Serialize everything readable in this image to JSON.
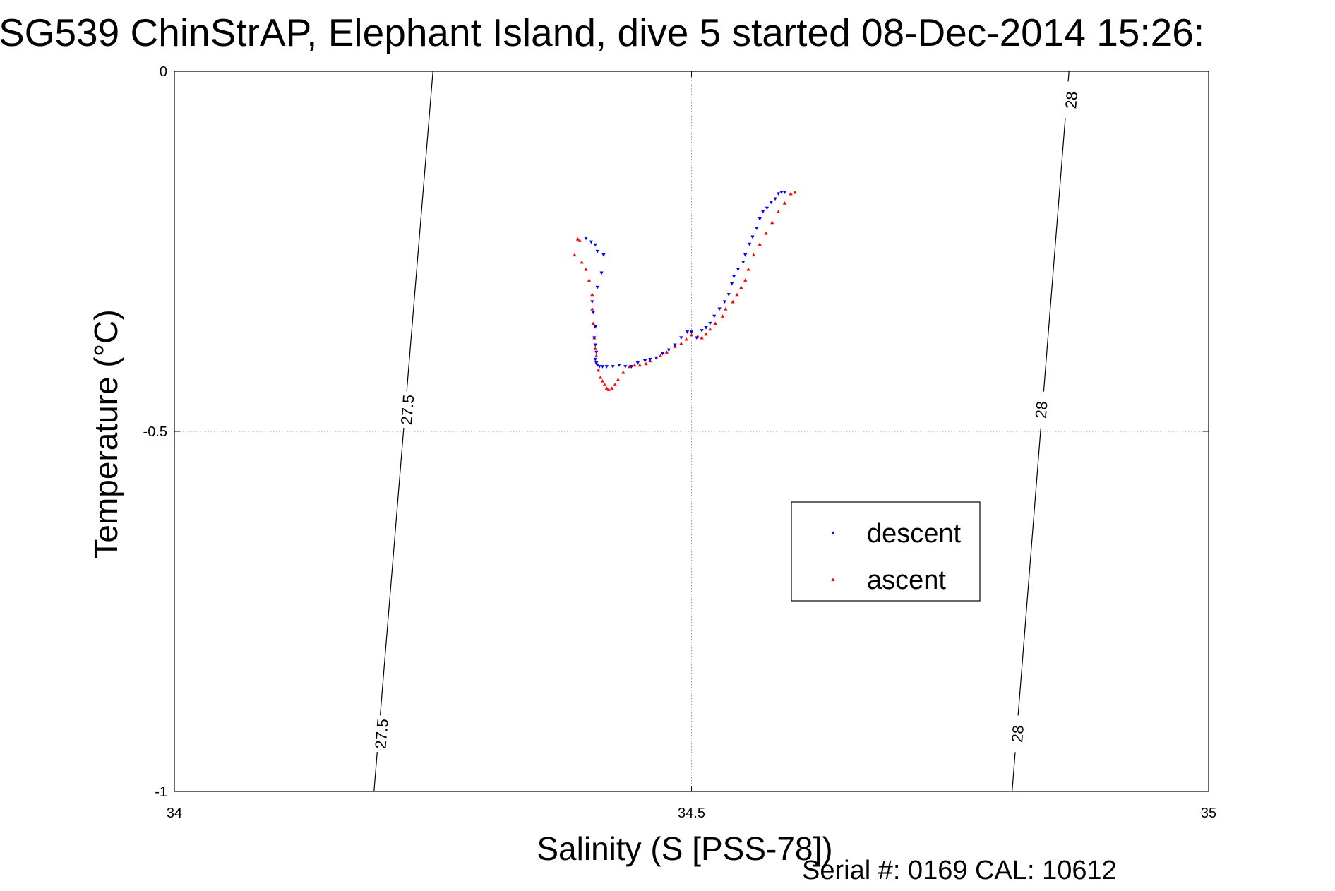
{
  "title": "SG539 ChinStrAP, Elephant Island, dive 5 started 08-Dec-2014 15:26:",
  "serial_note": "Serial #: 0169 CAL: 10612",
  "colors": {
    "descent": "#0000ff",
    "ascent": "#ff0000",
    "axes": "#000000",
    "grid": "#999999"
  },
  "chart_data": {
    "type": "scatter",
    "xlabel": "Salinity (S [PSS-78])",
    "ylabel": "Temperature (°C)",
    "xlim": [
      34,
      35
    ],
    "ylim": [
      -1,
      0
    ],
    "x_ticks": [
      "34",
      "34.5",
      "35"
    ],
    "x_tick_values": [
      34,
      34.5,
      35
    ],
    "y_ticks": [
      "0",
      "-0.5",
      "-1"
    ],
    "y_tick_values": [
      0,
      -0.5,
      -1
    ],
    "grid": true,
    "legend_position": "lower-right",
    "legend": [
      "descent",
      "ascent"
    ],
    "contours": [
      {
        "label": "27.5",
        "points": [
          [
            34.25,
            0
          ],
          [
            34.193,
            -1
          ]
        ],
        "label_at": [
          [
            34.225,
            -0.47
          ],
          [
            34.2,
            -0.92
          ]
        ]
      },
      {
        "label": "28",
        "points": [
          [
            34.865,
            0
          ],
          [
            34.81,
            -1
          ]
        ],
        "label_at": [
          [
            34.867,
            -0.04
          ],
          [
            34.838,
            -0.47
          ],
          [
            34.815,
            -0.92
          ]
        ]
      }
    ],
    "series": [
      {
        "name": "descent",
        "marker": "triangle-down",
        "x": [
          34.398,
          34.403,
          34.407,
          34.409,
          34.415,
          34.413,
          34.409,
          34.404,
          34.405,
          34.407,
          34.406,
          34.407,
          34.408,
          34.407,
          34.408,
          34.409,
          34.411,
          34.414,
          34.418,
          34.424,
          34.43,
          34.436,
          34.442,
          34.448,
          34.455,
          34.46,
          34.466,
          34.472,
          34.478,
          34.484,
          34.49,
          34.496,
          34.5,
          34.505,
          34.51,
          34.514,
          34.518,
          34.522,
          34.527,
          34.532,
          34.536,
          34.539,
          34.541,
          34.545,
          34.55,
          34.552,
          34.556,
          34.559,
          34.563,
          34.566,
          34.569,
          34.573,
          34.577,
          34.581,
          34.584,
          34.587,
          34.59
        ],
        "y": [
          -0.232,
          -0.237,
          -0.241,
          -0.25,
          -0.255,
          -0.28,
          -0.3,
          -0.32,
          -0.335,
          -0.355,
          -0.37,
          -0.38,
          -0.39,
          -0.4,
          -0.405,
          -0.408,
          -0.41,
          -0.41,
          -0.41,
          -0.41,
          -0.408,
          -0.41,
          -0.41,
          -0.405,
          -0.402,
          -0.4,
          -0.398,
          -0.392,
          -0.387,
          -0.38,
          -0.37,
          -0.362,
          -0.362,
          -0.37,
          -0.36,
          -0.356,
          -0.35,
          -0.34,
          -0.33,
          -0.32,
          -0.31,
          -0.295,
          -0.285,
          -0.275,
          -0.265,
          -0.255,
          -0.24,
          -0.23,
          -0.218,
          -0.205,
          -0.195,
          -0.19,
          -0.182,
          -0.177,
          -0.17,
          -0.168,
          -0.168
        ]
      },
      {
        "name": "ascent",
        "marker": "triangle-up",
        "x": [
          34.39,
          34.392,
          34.387,
          34.394,
          34.398,
          34.401,
          34.404,
          34.404,
          34.405,
          34.406,
          34.407,
          34.408,
          34.408,
          34.41,
          34.412,
          34.414,
          34.416,
          34.418,
          34.42,
          34.423,
          34.426,
          34.429,
          34.434,
          34.44,
          34.445,
          34.45,
          34.456,
          34.46,
          34.466,
          34.47,
          34.476,
          34.484,
          34.49,
          34.495,
          34.5,
          34.506,
          34.51,
          34.514,
          34.518,
          34.523,
          34.53,
          34.533,
          34.54,
          34.544,
          34.548,
          34.552,
          34.555,
          34.56,
          34.566,
          34.572,
          34.578,
          34.584,
          34.59,
          34.596,
          34.6
        ],
        "y": [
          -0.233,
          -0.235,
          -0.255,
          -0.265,
          -0.275,
          -0.29,
          -0.31,
          -0.33,
          -0.35,
          -0.37,
          -0.385,
          -0.395,
          -0.405,
          -0.415,
          -0.425,
          -0.43,
          -0.435,
          -0.44,
          -0.442,
          -0.44,
          -0.435,
          -0.428,
          -0.418,
          -0.41,
          -0.408,
          -0.408,
          -0.406,
          -0.402,
          -0.398,
          -0.395,
          -0.39,
          -0.382,
          -0.378,
          -0.372,
          -0.366,
          -0.368,
          -0.37,
          -0.365,
          -0.358,
          -0.35,
          -0.34,
          -0.33,
          -0.32,
          -0.31,
          -0.3,
          -0.29,
          -0.275,
          -0.255,
          -0.24,
          -0.225,
          -0.21,
          -0.195,
          -0.183,
          -0.17,
          -0.168
        ]
      }
    ]
  }
}
